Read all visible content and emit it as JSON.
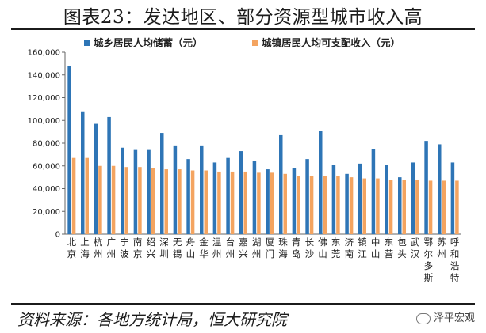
{
  "title": "图表23：发达地区、部分资源型城市收入高",
  "source": "资料来源：各地方统计局，恒大研究院",
  "watermark": "泽平宏观",
  "chart_data": {
    "type": "bar",
    "title": "",
    "xlabel": "",
    "ylabel": "",
    "ylim": [
      0,
      160000
    ],
    "yticks": [
      "0",
      "20,000",
      "40,000",
      "60,000",
      "80,000",
      "100,000",
      "120,000",
      "140,000",
      "160,000"
    ],
    "grid": false,
    "legend_position": "top",
    "categories": [
      "北京",
      "上海",
      "杭州",
      "广州",
      "宁波",
      "南京",
      "绍兴",
      "深圳",
      "无锡",
      "舟山",
      "金华",
      "温州",
      "台州",
      "嘉兴",
      "湖州",
      "厦门",
      "珠海",
      "青岛",
      "长沙",
      "佛山",
      "东莞",
      "济南",
      "镇江",
      "中山",
      "东营",
      "包头",
      "武汉",
      "鄂尔多斯",
      "苏州",
      "呼和浩特"
    ],
    "series": [
      {
        "name": "城乡居民人均储蓄（元）",
        "color": "#2e75b6",
        "values": [
          148000,
          108000,
          97000,
          103000,
          76000,
          74000,
          74000,
          89000,
          78000,
          66000,
          78000,
          63000,
          67000,
          73000,
          64000,
          57000,
          87000,
          58000,
          66000,
          91000,
          61000,
          53000,
          62000,
          75000,
          61000,
          50000,
          63000,
          82000,
          79000,
          63000
        ]
      },
      {
        "name": "城镇居民人均可支配收入（元）",
        "color": "#f4a460",
        "values": [
          67000,
          67000,
          60000,
          60000,
          59000,
          59000,
          58000,
          57000,
          57000,
          56000,
          56000,
          55000,
          55000,
          55000,
          54000,
          54000,
          53000,
          51000,
          51000,
          51000,
          51000,
          50000,
          49000,
          49000,
          48000,
          48000,
          48000,
          47000,
          47000,
          47000
        ]
      }
    ]
  }
}
